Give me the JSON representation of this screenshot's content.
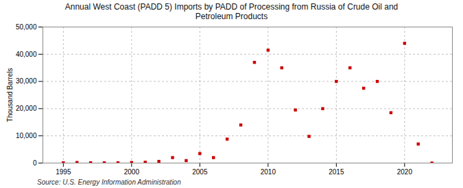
{
  "chart_data": {
    "type": "scatter",
    "title": "Annual West Coast (PADD 5) Imports by PADD of Processing from Russia of Crude Oil and\nPetroleum Products",
    "ylabel": "Thousand Barrels",
    "source": "Source: U.S. Energy Information Administration",
    "x": [
      1995,
      1996,
      1997,
      1998,
      1999,
      2000,
      2001,
      2002,
      2003,
      2004,
      2005,
      2006,
      2007,
      2008,
      2009,
      2010,
      2011,
      2012,
      2013,
      2014,
      2015,
      2016,
      2017,
      2018,
      2019,
      2020,
      2021,
      2022
    ],
    "values": [
      100,
      200,
      100,
      100,
      100,
      200,
      300,
      600,
      2000,
      900,
      3500,
      2000,
      8800,
      14000,
      37000,
      41500,
      35000,
      19500,
      9800,
      20000,
      30000,
      35000,
      27500,
      30000,
      18500,
      44000,
      7000,
      0
    ],
    "color": "#cc0000",
    "marker": "square",
    "xlim": [
      1993.5,
      2023.5
    ],
    "xticks": [
      1995,
      2000,
      2005,
      2010,
      2015,
      2020
    ],
    "ylim": [
      0,
      50000
    ],
    "yticks": [
      0,
      {
        "value": 10000,
        "label": "10,000"
      },
      {
        "value": 20000,
        "label": "20,000"
      },
      {
        "value": 30000,
        "label": "30,000"
      },
      {
        "value": 40000,
        "label": "40,000"
      },
      {
        "value": 50000,
        "label": "50,000"
      }
    ],
    "grid": true
  }
}
